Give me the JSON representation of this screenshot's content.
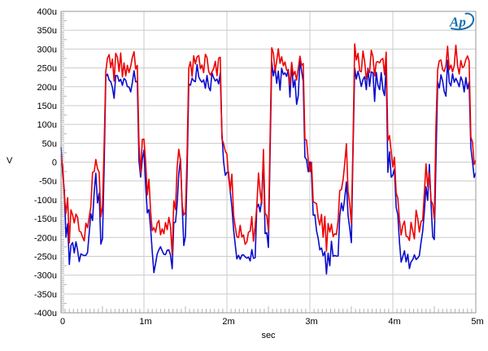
{
  "logo": {
    "text": "Ap",
    "color": "#1b6fae"
  },
  "chart_data": {
    "type": "line",
    "title": "",
    "xlabel": "sec",
    "ylabel": "V",
    "x_unit": "ms",
    "y_unit": "uV",
    "xlim": [
      0,
      5
    ],
    "ylim": [
      -400,
      400
    ],
    "x_ticks": [
      {
        "v": 0,
        "label": "0"
      },
      {
        "v": 1,
        "label": "1m"
      },
      {
        "v": 2,
        "label": "2m"
      },
      {
        "v": 3,
        "label": "3m"
      },
      {
        "v": 4,
        "label": "4m"
      },
      {
        "v": 5,
        "label": "5m"
      }
    ],
    "y_ticks": [
      {
        "v": 400,
        "label": "400u"
      },
      {
        "v": 350,
        "label": "350u"
      },
      {
        "v": 300,
        "label": "300u"
      },
      {
        "v": 250,
        "label": "250u"
      },
      {
        "v": 200,
        "label": "200u"
      },
      {
        "v": 150,
        "label": "150u"
      },
      {
        "v": 100,
        "label": "100u"
      },
      {
        "v": 50,
        "label": "50u"
      },
      {
        "v": 0,
        "label": "0"
      },
      {
        "v": -50,
        "label": "-50u"
      },
      {
        "v": -100,
        "label": "-100u"
      },
      {
        "v": -150,
        "label": "-150u"
      },
      {
        "v": -200,
        "label": "-200u"
      },
      {
        "v": -250,
        "label": "-250u"
      },
      {
        "v": -300,
        "label": "-300u"
      },
      {
        "v": -350,
        "label": "-350u"
      },
      {
        "v": -400,
        "label": "-400u"
      }
    ],
    "x_minor_step": 0.05,
    "y_minor_step": 5,
    "grid": {
      "h_step": 50,
      "v_step": 1,
      "color": "#cbcbcb",
      "border_color": "#979797",
      "tick_color": "#b4b4b4"
    },
    "series": [
      {
        "name": "blue-trace",
        "color": "#0b0bcd"
      },
      {
        "name": "red-trace",
        "color": "#ed0000"
      }
    ],
    "waveform": {
      "shape": "noisy 1 kHz square waves, 5 periods over 5 ms",
      "period": 1,
      "periods_shown": 5,
      "sample_step": 0.02,
      "seed": 20,
      "correlated_noise": 0.6,
      "independent_noise": 0.7,
      "spike_probability": 0.05,
      "spike_gain": 1.9,
      "clamp": [
        -356,
        368
      ],
      "envelope_keys": "phase_fraction, red_mean_uV, red_noise_uV, blue_mean_uV, blue_noise_uV",
      "envelope": [
        [
          0.0,
          25,
          70,
          5,
          70
        ],
        [
          0.03,
          -30,
          70,
          -70,
          72
        ],
        [
          0.1,
          -175,
          60,
          -245,
          65
        ],
        [
          0.33,
          -175,
          60,
          -245,
          65
        ],
        [
          0.39,
          -60,
          95,
          -100,
          105
        ],
        [
          0.44,
          -5,
          95,
          -35,
          105
        ],
        [
          0.47,
          -120,
          65,
          -180,
          75
        ],
        [
          0.5,
          -140,
          50,
          -205,
          55
        ],
        [
          0.512,
          -50,
          55,
          -100,
          60
        ],
        [
          0.535,
          260,
          60,
          220,
          55
        ],
        [
          0.9,
          260,
          60,
          220,
          55
        ],
        [
          0.92,
          270,
          70,
          225,
          60
        ],
        [
          0.94,
          60,
          75,
          20,
          75
        ],
        [
          0.965,
          25,
          70,
          -15,
          70
        ],
        [
          1.0,
          25,
          70,
          5,
          70
        ]
      ],
      "approx_levels": {
        "red_high_mean": 260,
        "red_low_mean": -175,
        "blue_high_mean": 220,
        "blue_low_mean": -245,
        "red_peak_max": 360,
        "blue_dip_min": -350
      }
    }
  }
}
